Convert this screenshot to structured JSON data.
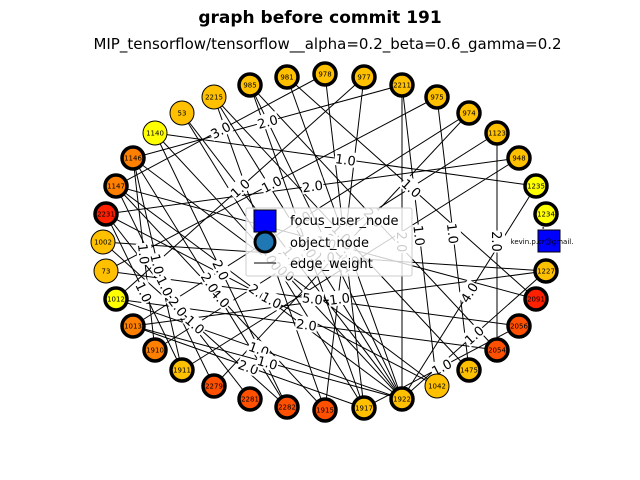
{
  "title": "graph before commit 191",
  "subtitle": "MIP_tensorflow/tensorflow__alpha=0.2_beta=0.6_gamma=0.2",
  "legend": {
    "focus": "focus_user_node",
    "object": "object_node",
    "edge": "edge_weight"
  },
  "colors": {
    "focus": "#0000ff",
    "object_legend": "#1f77b4",
    "gold": "#ffc000",
    "yellow": "#ffff00",
    "orange": "#ff8000",
    "darkorange": "#ff5000",
    "red": "#ff2000"
  },
  "focus_node": {
    "id": "kevin.p.cr@gmail."
  },
  "nodes": [
    {
      "id": "985",
      "color": "gold",
      "thick": true
    },
    {
      "id": "981",
      "color": "gold",
      "thick": true
    },
    {
      "id": "978",
      "color": "gold",
      "thick": true
    },
    {
      "id": "977",
      "color": "gold",
      "thick": true
    },
    {
      "id": "2211",
      "color": "gold",
      "thick": true
    },
    {
      "id": "975",
      "color": "gold",
      "thick": true
    },
    {
      "id": "974",
      "color": "gold",
      "thick": true
    },
    {
      "id": "1123",
      "color": "gold",
      "thick": true
    },
    {
      "id": "948",
      "color": "gold",
      "thick": true
    },
    {
      "id": "1235",
      "color": "yellow",
      "thick": true
    },
    {
      "id": "1234",
      "color": "yellow",
      "thick": true
    },
    {
      "id": "1227",
      "color": "gold",
      "thick": true
    },
    {
      "id": "2091",
      "color": "red",
      "thick": true
    },
    {
      "id": "2056",
      "color": "darkorange",
      "thick": true
    },
    {
      "id": "2054",
      "color": "darkorange",
      "thick": true
    },
    {
      "id": "1475",
      "color": "gold",
      "thick": true
    },
    {
      "id": "1042",
      "color": "gold",
      "thick": false
    },
    {
      "id": "1922",
      "color": "gold",
      "thick": true
    },
    {
      "id": "1917",
      "color": "gold",
      "thick": true
    },
    {
      "id": "1915",
      "color": "darkorange",
      "thick": true
    },
    {
      "id": "2282",
      "color": "darkorange",
      "thick": true
    },
    {
      "id": "2281",
      "color": "darkorange",
      "thick": true
    },
    {
      "id": "2279",
      "color": "darkorange",
      "thick": true
    },
    {
      "id": "1911",
      "color": "gold",
      "thick": true
    },
    {
      "id": "1910",
      "color": "orange",
      "thick": true
    },
    {
      "id": "1013",
      "color": "orange",
      "thick": true
    },
    {
      "id": "1012",
      "color": "yellow",
      "thick": true
    },
    {
      "id": "73",
      "color": "gold",
      "thick": false
    },
    {
      "id": "1002",
      "color": "gold",
      "thick": false
    },
    {
      "id": "2231",
      "color": "red",
      "thick": true
    },
    {
      "id": "1147",
      "color": "orange",
      "thick": true
    },
    {
      "id": "1146",
      "color": "orange",
      "thick": true
    },
    {
      "id": "1140",
      "color": "yellow",
      "thick": false
    },
    {
      "id": "53",
      "color": "gold",
      "thick": false
    },
    {
      "id": "2215",
      "color": "gold",
      "thick": false
    }
  ],
  "edges": [
    {
      "a": "985",
      "b": "1922",
      "w": "1.0"
    },
    {
      "a": "985",
      "b": "1917",
      "w": "1.0"
    },
    {
      "a": "985",
      "b": "2054",
      "w": "2.0"
    },
    {
      "a": "981",
      "b": "2091",
      "w": "1.0"
    },
    {
      "a": "981",
      "b": "1922",
      "w": "1.0"
    },
    {
      "a": "978",
      "b": "1917",
      "w": "1.0"
    },
    {
      "a": "978",
      "b": "1147",
      "w": "3.0"
    },
    {
      "a": "977",
      "b": "1915",
      "w": "1.0"
    },
    {
      "a": "977",
      "b": "1012",
      "w": "1.0"
    },
    {
      "a": "2211",
      "b": "1042",
      "w": "1.0"
    },
    {
      "a": "2211",
      "b": "1146",
      "w": "2.0"
    },
    {
      "a": "975",
      "b": "1475",
      "w": "1.0"
    },
    {
      "a": "975",
      "b": "73",
      "w": "1.0"
    },
    {
      "a": "974",
      "b": "2279",
      "w": "1.0"
    },
    {
      "a": "974",
      "b": "1013",
      "w": "1.0"
    },
    {
      "a": "1123",
      "b": "1910",
      "w": "2.0"
    },
    {
      "a": "1123",
      "b": "2054",
      "w": "2.0"
    },
    {
      "a": "948",
      "b": "2231",
      "w": "2.0"
    },
    {
      "a": "948",
      "b": "1911",
      "w": "1.0"
    },
    {
      "a": "1235",
      "b": "1140",
      "w": "1.0"
    },
    {
      "a": "1235",
      "b": "1922",
      "w": "4.0"
    },
    {
      "a": "1227",
      "b": "1002",
      "w": "2.0"
    },
    {
      "a": "1227",
      "b": "1013",
      "w": "1.0"
    },
    {
      "a": "2091",
      "b": "1147",
      "w": "1.0"
    },
    {
      "a": "2056",
      "b": "1917",
      "w": "1.0"
    },
    {
      "a": "2054",
      "b": "1012",
      "w": "2.0"
    },
    {
      "a": "1475",
      "b": "2215",
      "w": "1.0"
    },
    {
      "a": "1042",
      "b": "1146",
      "w": "1.0"
    },
    {
      "a": "1922",
      "b": "1140",
      "w": "2.0"
    },
    {
      "a": "1922",
      "b": "1147",
      "w": "2.0"
    },
    {
      "a": "1917",
      "b": "53",
      "w": "1.0"
    },
    {
      "a": "1915",
      "b": "2215",
      "w": "1.0"
    },
    {
      "a": "1915",
      "b": "1147",
      "w": "4.0"
    },
    {
      "a": "2282",
      "b": "1146",
      "w": "2.0"
    },
    {
      "a": "2282",
      "b": "1002",
      "w": "1.0"
    },
    {
      "a": "2281",
      "b": "2231",
      "w": "2.0"
    },
    {
      "a": "2279",
      "b": "1147",
      "w": "1.0"
    },
    {
      "a": "1911",
      "b": "2231",
      "w": "1.0"
    },
    {
      "a": "1910",
      "b": "1146",
      "w": "1.0"
    },
    {
      "a": "53",
      "b": "1922",
      "w": "1.0"
    },
    {
      "a": "2215",
      "b": "1922",
      "w": "1.0"
    },
    {
      "a": "1013",
      "b": "1917",
      "w": "2.0"
    },
    {
      "a": "1012",
      "b": "1922",
      "w": "1.0"
    },
    {
      "a": "1140",
      "b": "2282",
      "w": "2.0"
    },
    {
      "a": "1146",
      "b": "1911",
      "w": "1.0"
    },
    {
      "a": "2231",
      "b": "1042",
      "w": "1.0"
    },
    {
      "a": "1234",
      "b": "kevin.p.cr@gmail.",
      "w": "1.0"
    },
    {
      "a": "1227",
      "b": "1922",
      "w": "1.0"
    },
    {
      "a": "2056",
      "b": "73",
      "w": "5.0"
    },
    {
      "a": "1013",
      "b": "1922",
      "w": "1.0"
    },
    {
      "a": "2211",
      "b": "1922",
      "w": "2.0"
    }
  ]
}
